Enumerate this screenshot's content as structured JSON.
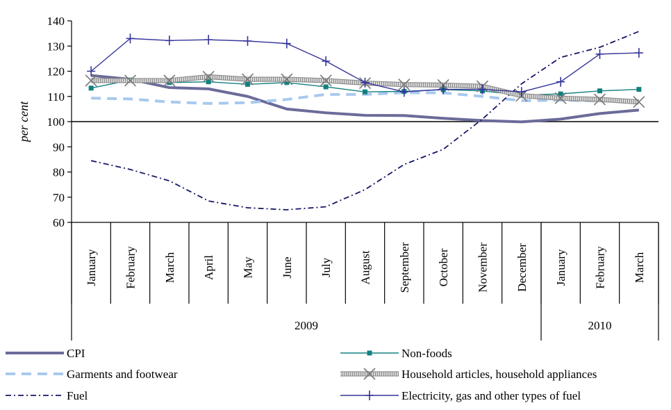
{
  "chart_data": {
    "type": "line",
    "ylabel": "per cent",
    "ylim": [
      60,
      140
    ],
    "yticks": [
      60,
      70,
      80,
      90,
      100,
      110,
      120,
      130,
      140
    ],
    "reference_line": 100,
    "categories": [
      "January",
      "February",
      "March",
      "April",
      "May",
      "June",
      "July",
      "August",
      "September",
      "October",
      "November",
      "December",
      "January",
      "February",
      "March"
    ],
    "year_groups": [
      {
        "label": "2009",
        "count": 12
      },
      {
        "label": "2010",
        "count": 3
      }
    ],
    "series": [
      {
        "name": "CPI",
        "color": "#6b6b9a",
        "style": "thick-solid",
        "marker": "none",
        "values": [
          118.3,
          116.8,
          113.5,
          113.0,
          110.0,
          105.0,
          103.5,
          102.5,
          102.4,
          101.3,
          100.4,
          99.9,
          101.0,
          103.2,
          104.6
        ]
      },
      {
        "name": "Garments and footwear",
        "color": "#a9c9ee",
        "style": "dashed-thick",
        "marker": "none",
        "values": [
          109.3,
          109.0,
          107.8,
          107.2,
          107.5,
          108.8,
          110.8,
          110.8,
          111.5,
          111.4,
          110.0,
          108.3,
          108.5,
          108.2,
          108.3
        ]
      },
      {
        "name": "Fuel",
        "color": "#151565",
        "style": "dash-dot",
        "marker": "none",
        "values": [
          84.5,
          81.0,
          76.5,
          68.5,
          65.8,
          65.0,
          66.2,
          73.0,
          83.0,
          89.0,
          101.0,
          115.0,
          125.5,
          129.5,
          135.8
        ]
      },
      {
        "name": "Non-foods",
        "color": "#138080",
        "style": "solid",
        "marker": "square",
        "values": [
          113.3,
          116.5,
          115.5,
          115.8,
          114.8,
          115.5,
          113.8,
          111.8,
          112.0,
          112.7,
          112.2,
          110.5,
          111.0,
          112.2,
          112.8
        ]
      },
      {
        "name": "Household articles, household appliances",
        "color": "#ababab",
        "style": "textured-thick",
        "marker": "x",
        "values": [
          116.3,
          116.3,
          116.3,
          117.8,
          116.8,
          116.8,
          116.3,
          115.3,
          114.7,
          114.5,
          114.0,
          110.3,
          109.3,
          108.8,
          107.8
        ]
      },
      {
        "name": "Electricity, gas and other types of fuel",
        "color": "#33339a",
        "style": "solid",
        "marker": "plus",
        "values": [
          120.0,
          133.0,
          132.2,
          132.5,
          132.0,
          131.0,
          124.0,
          115.5,
          111.8,
          112.8,
          112.8,
          111.8,
          115.8,
          126.8,
          127.3
        ]
      }
    ],
    "legend_order": [
      "CPI",
      "Non-foods",
      "Garments and footwear",
      "Household articles, household appliances",
      "Fuel",
      "Electricity, gas and other types of fuel"
    ],
    "legend_placement": "bottom",
    "grid": false
  }
}
